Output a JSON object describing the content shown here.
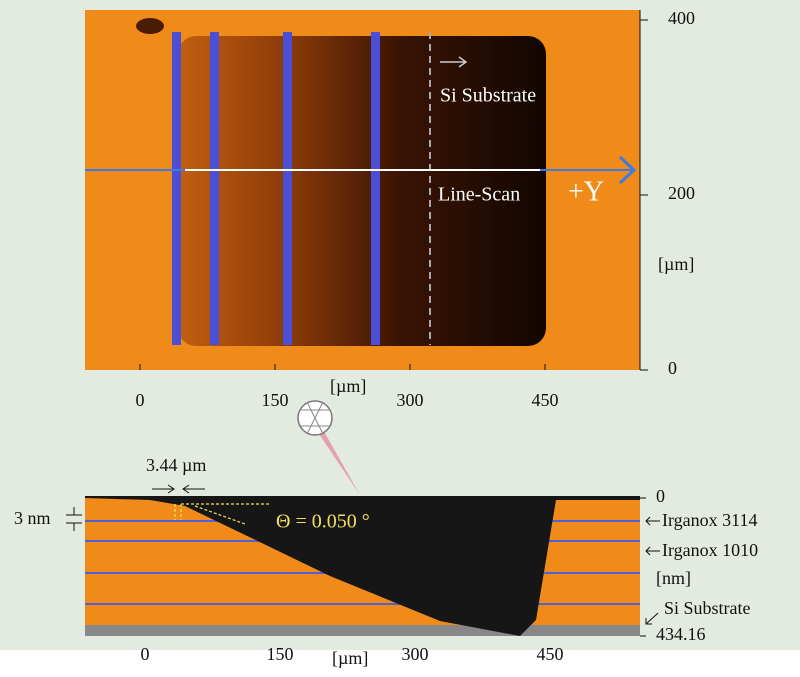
{
  "image_panel": {
    "xticks": [
      0,
      150,
      300,
      450
    ],
    "yticks": [
      0,
      200,
      400
    ],
    "x_label": "[µm]",
    "y_label": "[µm]",
    "substrate_label": "Si Substrate",
    "line_scan_label": "Line-Scan",
    "direction_label": "+Y"
  },
  "profile_panel": {
    "xticks": [
      0,
      150,
      300,
      450
    ],
    "x_label": "[µm]",
    "yticks": [
      0,
      434.16
    ],
    "y_label": "[nm]",
    "step_width": "3.44 µm",
    "layer_thickness": "3 nm",
    "angle": "Θ =  0.050 °",
    "layers": [
      "Irganox 3114",
      "Irganox 1010",
      "Si Substrate"
    ]
  }
}
